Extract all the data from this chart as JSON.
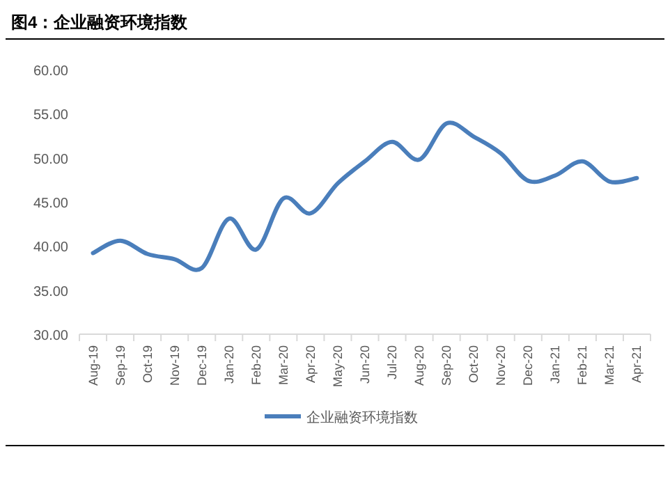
{
  "chart_data": {
    "type": "line",
    "title": "图4：企业融资环境指数",
    "categories": [
      "Aug-19",
      "Sep-19",
      "Oct-19",
      "Nov-19",
      "Dec-19",
      "Jan-20",
      "Feb-20",
      "Mar-20",
      "Apr-20",
      "May-20",
      "Jun-20",
      "Jul-20",
      "Aug-20",
      "Sep-20",
      "Oct-20",
      "Nov-20",
      "Dec-20",
      "Jan-21",
      "Feb-21",
      "Mar-21",
      "Apr-21"
    ],
    "series": [
      {
        "name": "企业融资环境指数",
        "color": "#4a7ebb",
        "values": [
          39.2,
          40.6,
          39.1,
          38.5,
          37.5,
          43.1,
          39.6,
          45.4,
          43.7,
          47.1,
          49.6,
          51.8,
          49.8,
          53.9,
          52.4,
          50.5,
          47.4,
          48.0,
          49.6,
          47.3,
          47.7
        ]
      }
    ],
    "ylim": [
      30,
      60
    ],
    "yticks": [
      {
        "value": 30,
        "label": "30.00"
      },
      {
        "value": 35,
        "label": "35.00"
      },
      {
        "value": 40,
        "label": "40.00"
      },
      {
        "value": 45,
        "label": "45.00"
      },
      {
        "value": 50,
        "label": "50.00"
      },
      {
        "value": 55,
        "label": "55.00"
      },
      {
        "value": 60,
        "label": "60.00"
      }
    ],
    "grid": false,
    "legend": "bottom",
    "marker": "none",
    "line_style": "solid"
  }
}
